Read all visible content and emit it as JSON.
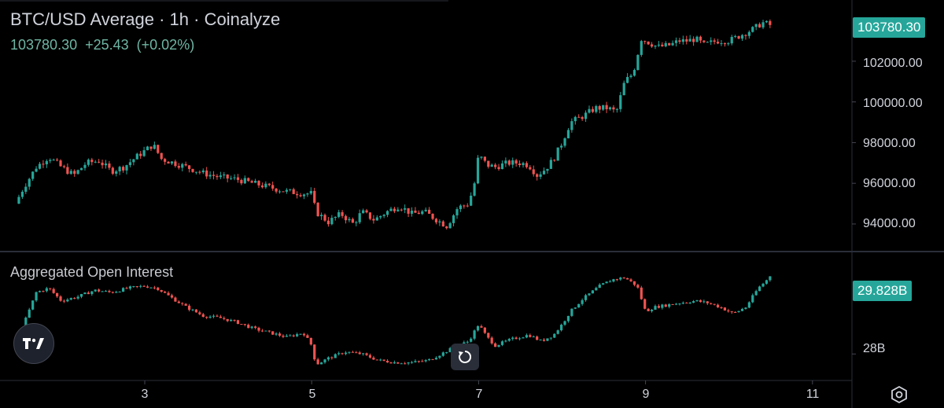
{
  "header": {
    "title": "BTC/USD Average · 1h · Coinalyze",
    "price": "103780.30",
    "change": "+25.43",
    "change_pct": "(+0.02%)"
  },
  "price_badge": "103780.30",
  "oi": {
    "title": "Aggregated Open Interest",
    "badge": "29.828B"
  },
  "price_axis_labels": [
    "102000.00",
    "100000.00",
    "98000.00",
    "96000.00",
    "94000.00"
  ],
  "oi_axis_labels": [
    "28B"
  ],
  "x_axis_labels": [
    "3",
    "5",
    "7",
    "9",
    "11"
  ],
  "icons": {
    "logo": "tradingview-logo-icon",
    "reset": "reset-chart-icon",
    "settings": "settings-hexagon-icon"
  },
  "colors": {
    "up": "#26a69a",
    "down": "#ef5350",
    "badge": "#26a69a"
  },
  "chart_data": [
    {
      "type": "line",
      "title": "BTC/USD Average · 1h · Coinalyze",
      "x_ticks": [
        "3",
        "5",
        "7",
        "9",
        "11"
      ],
      "xlim": [
        1.4,
        11.5
      ],
      "ylim": [
        92800,
        104700
      ],
      "y_ticks": [
        94000,
        96000,
        98000,
        100000,
        102000
      ],
      "series": [
        {
          "values": [
            [
              1.45,
              95000
            ],
            [
              1.55,
              95800
            ],
            [
              1.7,
              96800
            ],
            [
              1.85,
              97300
            ],
            [
              2.0,
              96800
            ],
            [
              2.15,
              96400
            ],
            [
              2.3,
              97000
            ],
            [
              2.45,
              97100
            ],
            [
              2.6,
              96600
            ],
            [
              2.75,
              96800
            ],
            [
              2.9,
              97300
            ],
            [
              3.0,
              97600
            ],
            [
              3.1,
              97900
            ],
            [
              3.2,
              97200
            ],
            [
              3.35,
              97000
            ],
            [
              3.5,
              96800
            ],
            [
              3.7,
              96500
            ],
            [
              3.9,
              96300
            ],
            [
              4.1,
              96200
            ],
            [
              4.3,
              96000
            ],
            [
              4.5,
              95800
            ],
            [
              4.7,
              95600
            ],
            [
              4.9,
              95500
            ],
            [
              5.0,
              95500
            ],
            [
              5.05,
              94600
            ],
            [
              5.2,
              94100
            ],
            [
              5.35,
              94500
            ],
            [
              5.5,
              94000
            ],
            [
              5.6,
              94600
            ],
            [
              5.75,
              94200
            ],
            [
              5.9,
              94600
            ],
            [
              6.05,
              94900
            ],
            [
              6.2,
              94500
            ],
            [
              6.35,
              94600
            ],
            [
              6.5,
              94200
            ],
            [
              6.62,
              93900
            ],
            [
              6.75,
              94800
            ],
            [
              6.88,
              95000
            ],
            [
              6.95,
              96000
            ],
            [
              7.0,
              97400
            ],
            [
              7.1,
              96900
            ],
            [
              7.2,
              96800
            ],
            [
              7.35,
              97000
            ],
            [
              7.5,
              97000
            ],
            [
              7.6,
              96900
            ],
            [
              7.7,
              96400
            ],
            [
              7.8,
              96700
            ],
            [
              7.9,
              97200
            ],
            [
              8.0,
              98000
            ],
            [
              8.1,
              99000
            ],
            [
              8.25,
              99300
            ],
            [
              8.4,
              99700
            ],
            [
              8.55,
              99700
            ],
            [
              8.65,
              99500
            ],
            [
              8.75,
              101000
            ],
            [
              8.85,
              101400
            ],
            [
              8.95,
              103100
            ],
            [
              9.05,
              102900
            ],
            [
              9.15,
              102700
            ],
            [
              9.3,
              102800
            ],
            [
              9.4,
              103000
            ],
            [
              9.5,
              103000
            ],
            [
              9.6,
              103100
            ],
            [
              9.7,
              102800
            ],
            [
              9.85,
              103000
            ],
            [
              10.0,
              103000
            ],
            [
              10.15,
              103300
            ],
            [
              10.3,
              103600
            ],
            [
              10.4,
              103900
            ],
            [
              10.5,
              103780
            ]
          ]
        }
      ]
    },
    {
      "type": "line",
      "title": "Aggregated Open Interest",
      "ylim": [
        27.45,
        30.3
      ],
      "y_ticks": [
        28
      ],
      "series": [
        {
          "values": [
            [
              1.45,
              28.05
            ],
            [
              1.55,
              28.7
            ],
            [
              1.7,
              29.45
            ],
            [
              1.85,
              29.55
            ],
            [
              2.0,
              29.25
            ],
            [
              2.2,
              29.35
            ],
            [
              2.4,
              29.5
            ],
            [
              2.6,
              29.45
            ],
            [
              2.8,
              29.55
            ],
            [
              3.0,
              29.6
            ],
            [
              3.15,
              29.55
            ],
            [
              3.3,
              29.35
            ],
            [
              3.5,
              29.1
            ],
            [
              3.7,
              28.9
            ],
            [
              3.9,
              28.85
            ],
            [
              4.1,
              28.75
            ],
            [
              4.3,
              28.6
            ],
            [
              4.5,
              28.5
            ],
            [
              4.7,
              28.4
            ],
            [
              4.9,
              28.5
            ],
            [
              5.0,
              28.2
            ],
            [
              5.05,
              27.75
            ],
            [
              5.2,
              27.9
            ],
            [
              5.4,
              28.05
            ],
            [
              5.6,
              28.0
            ],
            [
              5.8,
              27.85
            ],
            [
              6.0,
              27.8
            ],
            [
              6.2,
              27.8
            ],
            [
              6.4,
              27.85
            ],
            [
              6.55,
              28.0
            ],
            [
              6.7,
              28.15
            ],
            [
              6.88,
              28.3
            ],
            [
              7.0,
              28.7
            ],
            [
              7.1,
              28.4
            ],
            [
              7.2,
              28.2
            ],
            [
              7.4,
              28.35
            ],
            [
              7.6,
              28.45
            ],
            [
              7.75,
              28.3
            ],
            [
              7.9,
              28.45
            ],
            [
              8.0,
              28.7
            ],
            [
              8.1,
              29.0
            ],
            [
              8.25,
              29.3
            ],
            [
              8.45,
              29.6
            ],
            [
              8.6,
              29.75
            ],
            [
              8.75,
              29.8
            ],
            [
              8.9,
              29.6
            ],
            [
              9.0,
              29.0
            ],
            [
              9.1,
              29.1
            ],
            [
              9.25,
              29.15
            ],
            [
              9.4,
              29.2
            ],
            [
              9.6,
              29.25
            ],
            [
              9.75,
              29.2
            ],
            [
              9.9,
              29.1
            ],
            [
              10.05,
              28.95
            ],
            [
              10.2,
              29.1
            ],
            [
              10.35,
              29.55
            ],
            [
              10.5,
              29.828
            ]
          ]
        }
      ]
    }
  ]
}
